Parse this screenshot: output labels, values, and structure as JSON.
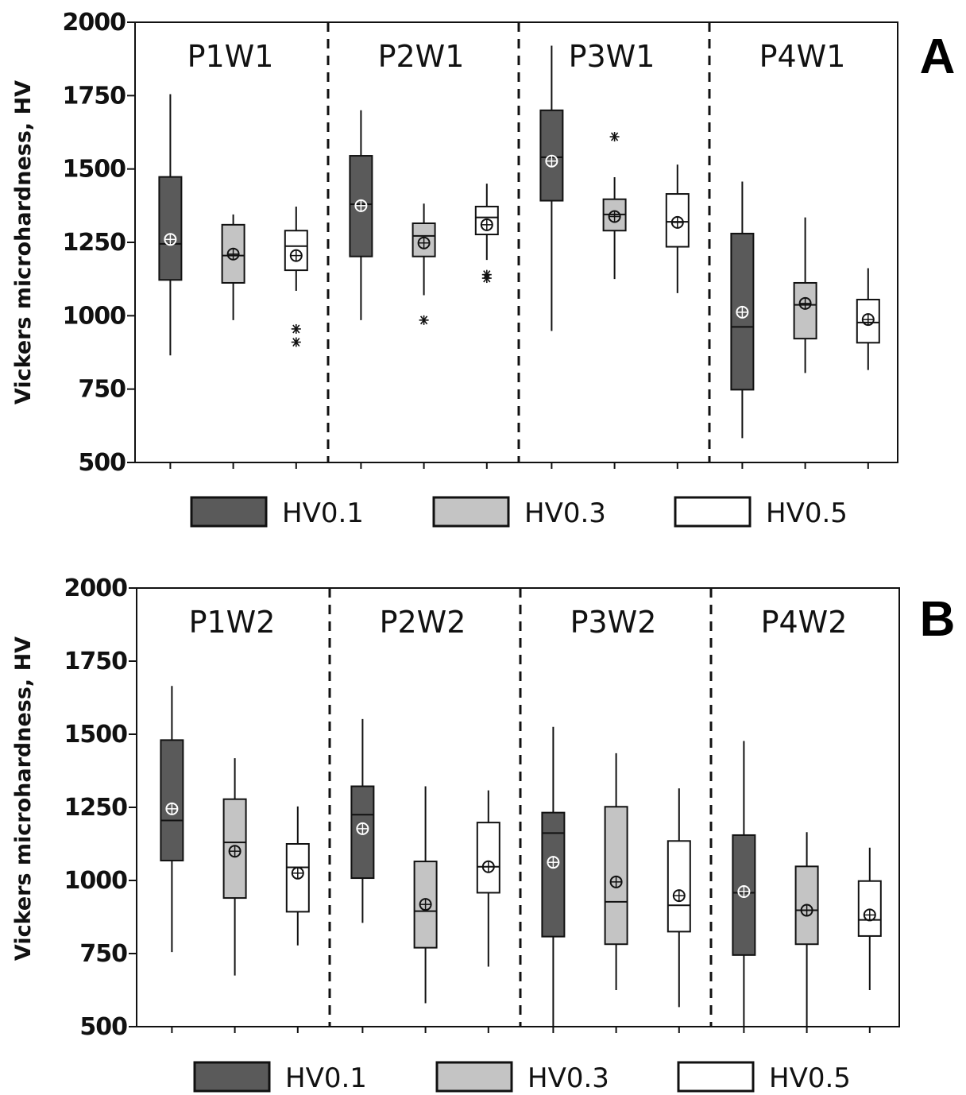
{
  "colors": {
    "HV0.1": "#5a5a5a",
    "HV0.3": "#c4c4c4",
    "HV0.5": "#ffffff",
    "stroke": "#111111"
  },
  "chart_data": [
    {
      "type": "box",
      "panel_label": "A",
      "ylabel": "Vickers microhardness, HV",
      "ylim": [
        500,
        2000
      ],
      "yticks": [
        "500",
        "750",
        "1000",
        "1250",
        "1500",
        "1750",
        "2000"
      ],
      "legend": [
        "HV0.1",
        "HV0.3",
        "HV0.5"
      ],
      "groups": [
        {
          "label": "P1W1",
          "boxes": [
            {
              "series": "HV0.1",
              "whisker_low": 865,
              "q1": 1122,
              "median": 1245,
              "q3": 1473,
              "whisker_high": 1755,
              "mean": 1260,
              "outliers": []
            },
            {
              "series": "HV0.3",
              "whisker_low": 985,
              "q1": 1112,
              "median": 1205,
              "q3": 1310,
              "whisker_high": 1345,
              "mean": 1210,
              "outliers": []
            },
            {
              "series": "HV0.5",
              "whisker_low": 1085,
              "q1": 1155,
              "median": 1237,
              "q3": 1290,
              "whisker_high": 1372,
              "mean": 1205,
              "outliers": [
                955,
                910
              ]
            }
          ]
        },
        {
          "label": "P2W1",
          "boxes": [
            {
              "series": "HV0.1",
              "whisker_low": 985,
              "q1": 1202,
              "median": 1380,
              "q3": 1545,
              "whisker_high": 1700,
              "mean": 1375,
              "outliers": []
            },
            {
              "series": "HV0.3",
              "whisker_low": 1070,
              "q1": 1202,
              "median": 1272,
              "q3": 1315,
              "whisker_high": 1382,
              "mean": 1248,
              "outliers": [
                985
              ]
            },
            {
              "series": "HV0.5",
              "whisker_low": 1190,
              "q1": 1277,
              "median": 1335,
              "q3": 1372,
              "whisker_high": 1450,
              "mean": 1310,
              "outliers": [
                1140,
                1128
              ]
            }
          ]
        },
        {
          "label": "P3W1",
          "boxes": [
            {
              "series": "HV0.1",
              "whisker_low": 948,
              "q1": 1392,
              "median": 1540,
              "q3": 1700,
              "whisker_high": 1920,
              "mean": 1527,
              "outliers": []
            },
            {
              "series": "HV0.3",
              "whisker_low": 1125,
              "q1": 1290,
              "median": 1345,
              "q3": 1397,
              "whisker_high": 1472,
              "mean": 1338,
              "outliers": [
                1610
              ]
            },
            {
              "series": "HV0.5",
              "whisker_low": 1077,
              "q1": 1235,
              "median": 1320,
              "q3": 1415,
              "whisker_high": 1515,
              "mean": 1318,
              "outliers": []
            }
          ]
        },
        {
          "label": "P4W1",
          "boxes": [
            {
              "series": "HV0.1",
              "whisker_low": 583,
              "q1": 748,
              "median": 962,
              "q3": 1280,
              "whisker_high": 1457,
              "mean": 1012,
              "outliers": []
            },
            {
              "series": "HV0.3",
              "whisker_low": 805,
              "q1": 922,
              "median": 1037,
              "q3": 1112,
              "whisker_high": 1335,
              "mean": 1042,
              "outliers": []
            },
            {
              "series": "HV0.5",
              "whisker_low": 815,
              "q1": 908,
              "median": 977,
              "q3": 1055,
              "whisker_high": 1162,
              "mean": 987,
              "outliers": []
            }
          ]
        }
      ]
    },
    {
      "type": "box",
      "panel_label": "B",
      "ylabel": "Vickers microhardness, HV",
      "ylim": [
        500,
        2000
      ],
      "yticks": [
        "500",
        "750",
        "1000",
        "1250",
        "1500",
        "1750",
        "2000"
      ],
      "legend": [
        "HV0.1",
        "HV0.3",
        "HV0.5"
      ],
      "groups": [
        {
          "label": "P1W2",
          "boxes": [
            {
              "series": "HV0.1",
              "whisker_low": 755,
              "q1": 1068,
              "median": 1205,
              "q3": 1480,
              "whisker_high": 1665,
              "mean": 1245,
              "outliers": []
            },
            {
              "series": "HV0.3",
              "whisker_low": 675,
              "q1": 940,
              "median": 1130,
              "q3": 1278,
              "whisker_high": 1418,
              "mean": 1100,
              "outliers": []
            },
            {
              "series": "HV0.5",
              "whisker_low": 778,
              "q1": 893,
              "median": 1045,
              "q3": 1125,
              "whisker_high": 1253,
              "mean": 1025,
              "outliers": []
            }
          ]
        },
        {
          "label": "P2W2",
          "boxes": [
            {
              "series": "HV0.1",
              "whisker_low": 855,
              "q1": 1008,
              "median": 1225,
              "q3": 1322,
              "whisker_high": 1552,
              "mean": 1177,
              "outliers": []
            },
            {
              "series": "HV0.3",
              "whisker_low": 580,
              "q1": 770,
              "median": 895,
              "q3": 1065,
              "whisker_high": 1322,
              "mean": 918,
              "outliers": []
            },
            {
              "series": "HV0.5",
              "whisker_low": 705,
              "q1": 958,
              "median": 1047,
              "q3": 1198,
              "whisker_high": 1308,
              "mean": 1047,
              "outliers": []
            }
          ]
        },
        {
          "label": "P3W2",
          "boxes": [
            {
              "series": "HV0.1",
              "whisker_low": 500,
              "q1": 808,
              "median": 1162,
              "q3": 1232,
              "whisker_high": 1525,
              "mean": 1062,
              "outliers": []
            },
            {
              "series": "HV0.3",
              "whisker_low": 625,
              "q1": 782,
              "median": 927,
              "q3": 1252,
              "whisker_high": 1435,
              "mean": 995,
              "outliers": []
            },
            {
              "series": "HV0.5",
              "whisker_low": 567,
              "q1": 825,
              "median": 915,
              "q3": 1135,
              "whisker_high": 1315,
              "mean": 948,
              "outliers": []
            }
          ]
        },
        {
          "label": "P4W2",
          "boxes": [
            {
              "series": "HV0.1",
              "whisker_low": 500,
              "q1": 745,
              "median": 958,
              "q3": 1155,
              "whisker_high": 1477,
              "mean": 962,
              "outliers": []
            },
            {
              "series": "HV0.3",
              "whisker_low": 500,
              "q1": 782,
              "median": 898,
              "q3": 1048,
              "whisker_high": 1165,
              "mean": 898,
              "outliers": []
            },
            {
              "series": "HV0.5",
              "whisker_low": 625,
              "q1": 810,
              "median": 865,
              "q3": 998,
              "whisker_high": 1112,
              "mean": 882,
              "outliers": []
            }
          ]
        }
      ]
    }
  ]
}
